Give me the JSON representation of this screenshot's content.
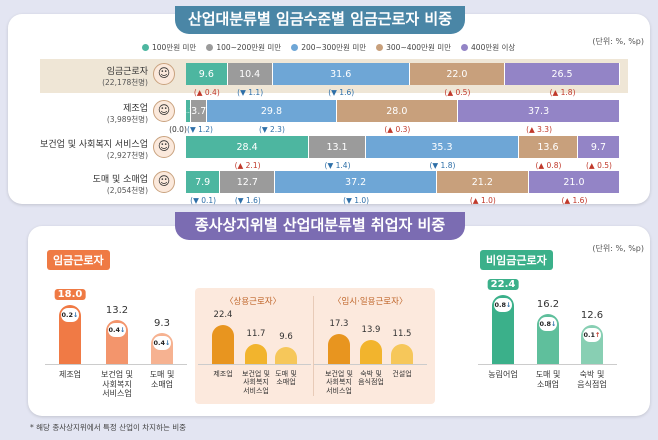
{
  "colors": {
    "c1": "#4db6a0",
    "c2": "#9b9b9b",
    "c3": "#6ea6d6",
    "c4": "#c8a07c",
    "c5": "#9384c6"
  },
  "chart_data": [
    {
      "type": "bar",
      "orientation": "horizontal-stacked",
      "title": "산업대분류별 임금수준별 임금근로자 비중",
      "unit": "(단위: %, %p)",
      "legend": [
        "100만원 미만",
        "100~200만원 미만",
        "200~300만원 미만",
        "300~400만원 미만",
        "400만원 이상"
      ],
      "rows": [
        {
          "label": "임금근로자",
          "sub": "(22,178천명)",
          "icon": "worker-avatar-icon",
          "values": [
            9.6,
            10.4,
            31.6,
            22.0,
            26.5
          ],
          "labels": [
            "9.6",
            "10.4",
            "31.6",
            "22.0",
            "26.5"
          ],
          "deltas": [
            [
              "up",
              "0.4"
            ],
            [
              "down",
              "1.1"
            ],
            [
              "down",
              "1.6"
            ],
            [
              "up",
              "0.5"
            ],
            [
              "up",
              "1.8"
            ]
          ]
        },
        {
          "label": "제조업",
          "sub": "(3,989천명)",
          "icon": "hardhat-worker-icon",
          "values": [
            1.2,
            3.7,
            29.8,
            28.0,
            37.3
          ],
          "labels": [
            "1.2",
            "3.7",
            "29.8",
            "28.0",
            "37.3"
          ],
          "deltas": [
            [
              "none",
              "0.0"
            ],
            [
              "down",
              "1.2"
            ],
            [
              "down",
              "2.3"
            ],
            [
              "up",
              "0.3"
            ],
            [
              "up",
              "3.3"
            ]
          ]
        },
        {
          "label": "보건업 및 사회복지 서비스업",
          "sub": "(2,927천명)",
          "icon": "nurse-avatar-icon",
          "values": [
            28.4,
            13.1,
            35.3,
            13.6,
            9.7
          ],
          "labels": [
            "28.4",
            "13.1",
            "35.3",
            "13.6",
            "9.7"
          ],
          "deltas": [
            [
              "up",
              "2.1"
            ],
            [
              "down",
              "1.4"
            ],
            [
              "down",
              "1.8"
            ],
            [
              "up",
              "0.8"
            ],
            [
              "up",
              "0.5"
            ]
          ]
        },
        {
          "label": "도매 및 소매업",
          "sub": "(2,054천명)",
          "icon": "clerk-avatar-icon",
          "values": [
            7.9,
            12.7,
            37.2,
            21.2,
            21.0
          ],
          "labels": [
            "7.9",
            "12.7",
            "37.2",
            "21.2",
            "21.0"
          ],
          "deltas": [
            [
              "down",
              "0.1"
            ],
            [
              "down",
              "1.6"
            ],
            [
              "down",
              "1.0"
            ],
            [
              "up",
              "1.0"
            ],
            [
              "up",
              "1.6"
            ]
          ]
        }
      ]
    },
    {
      "type": "bar",
      "title": "종사상지위별 산업대분류별 취업자 비중",
      "unit": "(단위: %, %p)",
      "footnote": "* 해당 종사상지위에서 특정 산업이 차지하는 비중",
      "groups": [
        {
          "key": "wage",
          "title": "임금근로자",
          "categories": [
            "제조업",
            "보건업 및\n사회복지\n서비스업",
            "도매 및\n소매업"
          ],
          "values": [
            18.0,
            13.2,
            9.3
          ],
          "deltas": [
            [
              "down",
              "0.2"
            ],
            [
              "down",
              "0.4"
            ],
            [
              "down",
              "0.4"
            ]
          ],
          "colors": [
            "#f07a45",
            "#f3956c",
            "#f6b291"
          ]
        },
        {
          "key": "regular",
          "title": "〈상용근로자〉",
          "categories": [
            "제조업",
            "보건업 및\n사회복지\n서비스업",
            "도매 및\n소매업"
          ],
          "values": [
            22.4,
            11.7,
            9.6
          ],
          "colors": [
            "#e8951f",
            "#f2b42d",
            "#f6c75a"
          ]
        },
        {
          "key": "temp",
          "title": "〈임시·일용근로자〉",
          "categories": [
            "보건업 및\n사회복지\n서비스업",
            "숙박 및\n음식점업",
            "건설업"
          ],
          "values": [
            17.3,
            13.9,
            11.5
          ],
          "colors": [
            "#e8951f",
            "#f2b42d",
            "#f6c75a"
          ]
        },
        {
          "key": "nonwage",
          "title": "비임금근로자",
          "categories": [
            "농림어업",
            "도매 및\n소매업",
            "숙박 및\n음식점업"
          ],
          "values": [
            22.4,
            16.2,
            12.6
          ],
          "deltas": [
            [
              "down",
              "0.8"
            ],
            [
              "down",
              "0.8"
            ],
            [
              "up",
              "0.1"
            ]
          ],
          "colors": [
            "#3bb08a",
            "#5fbf9c",
            "#88cfb3"
          ]
        }
      ]
    }
  ]
}
